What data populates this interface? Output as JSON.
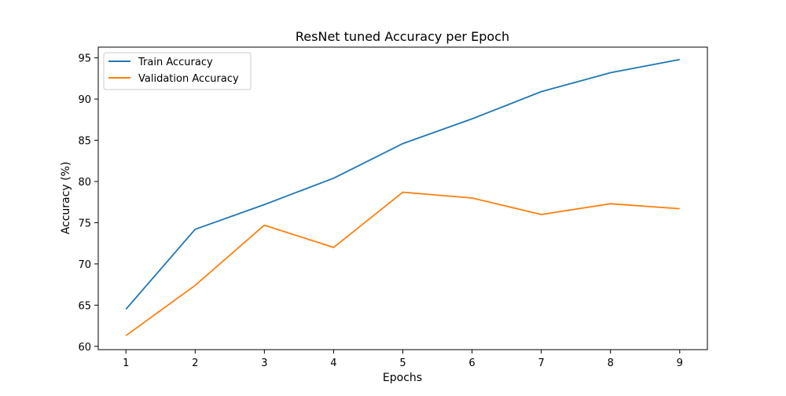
{
  "chart_data": {
    "type": "line",
    "title": "ResNet tuned Accuracy per Epoch",
    "xlabel": "Epochs",
    "ylabel": "Accuracy (%)",
    "x": [
      1,
      2,
      3,
      4,
      5,
      6,
      7,
      8,
      9
    ],
    "xlim": [
      0.6,
      9.4
    ],
    "ylim": [
      59.6,
      96.3
    ],
    "xticks": [
      1,
      2,
      3,
      4,
      5,
      6,
      7,
      8,
      9
    ],
    "yticks": [
      60,
      65,
      70,
      75,
      80,
      85,
      90,
      95
    ],
    "grid": false,
    "legend_position": "upper-left",
    "series": [
      {
        "name": "Train Accuracy",
        "color": "#1f77b4",
        "values": [
          64.5,
          74.2,
          77.2,
          80.4,
          84.6,
          87.6,
          90.9,
          93.2,
          94.8
        ]
      },
      {
        "name": "Validation Accuracy",
        "color": "#ff7f0e",
        "values": [
          61.3,
          67.4,
          74.7,
          72.0,
          78.7,
          78.0,
          76.0,
          77.3,
          76.7
        ]
      }
    ]
  }
}
